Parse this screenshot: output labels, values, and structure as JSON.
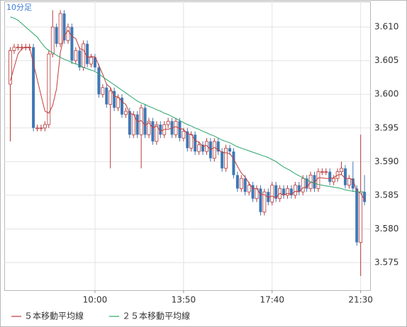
{
  "chart_data": {
    "type": "candlestick",
    "title": "10分足",
    "categories": [
      null,
      null,
      null,
      null,
      null,
      null,
      null,
      null,
      null,
      null,
      null,
      null,
      null,
      null,
      null,
      null,
      null,
      null,
      null,
      null,
      null,
      null,
      "10:00",
      null,
      null,
      null,
      null,
      null,
      null,
      null,
      null,
      null,
      null,
      null,
      null,
      null,
      null,
      null,
      null,
      null,
      null,
      null,
      null,
      null,
      null,
      "13:50",
      null,
      null,
      null,
      null,
      null,
      null,
      null,
      null,
      null,
      null,
      null,
      null,
      null,
      null,
      null,
      null,
      null,
      null,
      null,
      null,
      null,
      null,
      "17:40",
      null,
      null,
      null,
      null,
      null,
      null,
      null,
      null,
      null,
      null,
      null,
      null,
      null,
      null,
      null,
      null,
      null,
      null,
      null,
      null,
      null,
      null,
      "21:30",
      null
    ],
    "open": [
      3.6015,
      3.6065,
      3.607,
      3.607,
      3.607,
      3.607,
      3.607,
      3.595,
      3.595,
      3.595,
      3.5955,
      3.606,
      3.61,
      3.6075,
      3.612,
      3.608,
      3.61,
      3.605,
      3.6065,
      3.604,
      3.6075,
      3.6045,
      3.6055,
      3.604,
      3.6,
      3.601,
      3.5985,
      3.6005,
      3.598,
      3.5995,
      3.597,
      3.5975,
      3.594,
      3.597,
      3.594,
      3.598,
      3.594,
      3.596,
      3.593,
      3.5955,
      3.594,
      3.5955,
      3.596,
      3.594,
      3.596,
      3.5935,
      3.5945,
      3.592,
      3.594,
      3.5915,
      3.5925,
      3.5915,
      3.593,
      3.5905,
      3.593,
      3.5915,
      3.589,
      3.592,
      3.5915,
      3.588,
      3.586,
      3.5875,
      3.5855,
      3.5865,
      3.5845,
      3.586,
      3.5825,
      3.5855,
      3.584,
      3.5865,
      3.5845,
      3.586,
      3.585,
      3.586,
      3.585,
      3.5865,
      3.5855,
      3.5875,
      3.586,
      3.588,
      3.586,
      3.5885,
      3.5885,
      3.5885,
      3.587,
      3.5875,
      3.5885,
      3.589,
      3.5865,
      3.5875,
      3.586,
      3.578,
      3.5855
    ],
    "high": [
      3.607,
      3.6075,
      3.6075,
      3.6075,
      3.6075,
      3.6075,
      3.6075,
      3.5955,
      3.5955,
      3.596,
      3.6065,
      3.6125,
      3.6105,
      3.6125,
      3.6125,
      3.6105,
      3.6105,
      3.607,
      3.607,
      3.608,
      3.608,
      3.606,
      3.606,
      3.6045,
      3.6015,
      3.6015,
      3.601,
      3.601,
      3.6,
      3.6,
      3.598,
      3.598,
      3.5975,
      3.5975,
      3.5985,
      3.5985,
      3.5965,
      3.5965,
      3.596,
      3.596,
      3.596,
      3.5965,
      3.5965,
      3.5965,
      3.5965,
      3.595,
      3.595,
      3.5945,
      3.5945,
      3.593,
      3.593,
      3.5935,
      3.5935,
      3.5935,
      3.5935,
      3.592,
      3.5925,
      3.5925,
      3.592,
      3.5885,
      3.588,
      3.588,
      3.587,
      3.587,
      3.5865,
      3.5865,
      3.586,
      3.586,
      3.587,
      3.587,
      3.5865,
      3.5865,
      3.5865,
      3.5865,
      3.587,
      3.587,
      3.588,
      3.588,
      3.5885,
      3.5885,
      3.589,
      3.589,
      3.589,
      3.589,
      3.588,
      3.589,
      3.59,
      3.5895,
      3.588,
      3.59,
      3.5865,
      3.594,
      3.588
    ],
    "low": [
      3.593,
      3.606,
      3.6065,
      3.6065,
      3.6065,
      3.6065,
      3.5945,
      3.5945,
      3.5945,
      3.5945,
      3.595,
      3.6055,
      3.607,
      3.607,
      3.6075,
      3.6075,
      3.6045,
      3.6045,
      3.6035,
      3.6035,
      3.604,
      3.604,
      3.6035,
      3.5995,
      3.5995,
      3.598,
      3.589,
      3.5975,
      3.5975,
      3.5965,
      3.5965,
      3.5935,
      3.5935,
      3.5935,
      3.589,
      3.5935,
      3.5935,
      3.5925,
      3.5925,
      3.5935,
      3.5935,
      3.595,
      3.5935,
      3.5935,
      3.593,
      3.593,
      3.5915,
      3.5915,
      3.591,
      3.591,
      3.591,
      3.591,
      3.59,
      3.59,
      3.591,
      3.5885,
      3.5885,
      3.591,
      3.5875,
      3.5855,
      3.5855,
      3.585,
      3.585,
      3.584,
      3.584,
      3.582,
      3.582,
      3.5835,
      3.5835,
      3.584,
      3.584,
      3.5845,
      3.5845,
      3.5845,
      3.5845,
      3.585,
      3.585,
      3.5855,
      3.5855,
      3.5855,
      3.5855,
      3.588,
      3.588,
      3.5865,
      3.5865,
      3.587,
      3.588,
      3.586,
      3.586,
      3.5855,
      3.5775,
      3.573,
      3.5835
    ],
    "close": [
      3.6065,
      3.607,
      3.607,
      3.607,
      3.607,
      3.607,
      3.595,
      3.595,
      3.595,
      3.5955,
      3.606,
      3.61,
      3.6075,
      3.612,
      3.608,
      3.61,
      3.605,
      3.6065,
      3.604,
      3.6075,
      3.6045,
      3.6055,
      3.604,
      3.6,
      3.601,
      3.5985,
      3.6005,
      3.598,
      3.5995,
      3.597,
      3.5975,
      3.594,
      3.597,
      3.594,
      3.598,
      3.594,
      3.596,
      3.593,
      3.5955,
      3.594,
      3.5955,
      3.596,
      3.594,
      3.596,
      3.5935,
      3.5945,
      3.592,
      3.594,
      3.5915,
      3.5925,
      3.5915,
      3.593,
      3.5905,
      3.593,
      3.5915,
      3.589,
      3.592,
      3.5915,
      3.588,
      3.586,
      3.5875,
      3.5855,
      3.5865,
      3.5845,
      3.586,
      3.5825,
      3.5855,
      3.584,
      3.5865,
      3.5845,
      3.586,
      3.585,
      3.586,
      3.585,
      3.5865,
      3.5855,
      3.5875,
      3.586,
      3.588,
      3.586,
      3.5885,
      3.5885,
      3.5885,
      3.587,
      3.5875,
      3.5885,
      3.589,
      3.5865,
      3.5875,
      3.586,
      3.578,
      3.5855,
      3.584
    ],
    "up_color": "#b83a3a",
    "down_color": "#3f78b5",
    "series": [
      {
        "name": "５本移動平均線",
        "color": "#c23b3b",
        "values": [
          3.602,
          3.604,
          3.606,
          3.6068,
          3.607,
          3.607,
          3.6046,
          3.6022,
          3.5998,
          3.5975,
          3.5972,
          3.5983,
          3.6008,
          3.6062,
          3.6087,
          3.6095,
          3.6086,
          3.6083,
          3.6068,
          3.6066,
          3.6055,
          3.6056,
          3.6056,
          3.6043,
          3.603,
          3.6015,
          3.601,
          3.5997,
          3.5996,
          3.5989,
          3.5985,
          3.5972,
          3.597,
          3.5959,
          3.5961,
          3.5954,
          3.5958,
          3.595,
          3.5953,
          3.5945,
          3.5948,
          3.5948,
          3.595,
          3.5952,
          3.5949,
          3.5948,
          3.5941,
          3.5941,
          3.5931,
          3.5929,
          3.5923,
          3.5924,
          3.5918,
          3.5921,
          3.5918,
          3.5914,
          3.5913,
          3.5912,
          3.5904,
          3.5893,
          3.5883,
          3.5877,
          3.5868,
          3.586,
          3.586,
          3.5851,
          3.5851,
          3.5847,
          3.5849,
          3.5846,
          3.5853,
          3.585,
          3.5853,
          3.5851,
          3.5856,
          3.5855,
          3.5861,
          3.5862,
          3.5869,
          3.5869,
          3.5876,
          3.5876,
          3.5875,
          3.5875,
          3.5876,
          3.588,
          3.5881,
          3.5875,
          3.5875,
          3.5873,
          3.5856,
          3.5853,
          3.5843
        ]
      },
      {
        "name": "２５本移動平均線",
        "color": "#2aa36a",
        "values": [
          3.6115,
          3.6113,
          3.611,
          3.6105,
          3.61,
          3.6095,
          3.609,
          3.6085,
          3.6077,
          3.607,
          3.6065,
          3.6062,
          3.6058,
          3.6055,
          3.6052,
          3.605,
          3.6047,
          3.6045,
          3.6043,
          3.604,
          3.6038,
          3.6036,
          3.6034,
          3.603,
          3.6026,
          3.6022,
          3.6018,
          3.6014,
          3.601,
          3.6006,
          3.6002,
          3.5998,
          3.5994,
          3.599,
          3.5987,
          3.5985,
          3.5982,
          3.598,
          3.5977,
          3.5975,
          3.5972,
          3.597,
          3.5967,
          3.5964,
          3.5961,
          3.5958,
          3.5955,
          3.5953,
          3.595,
          3.5948,
          3.5945,
          3.5943,
          3.594,
          3.5938,
          3.5935,
          3.5932,
          3.593,
          3.5928,
          3.5925,
          3.5922,
          3.592,
          3.5918,
          3.5916,
          3.5914,
          3.5912,
          3.591,
          3.5908,
          3.5906,
          3.5903,
          3.59,
          3.5896,
          3.5892,
          3.5889,
          3.5886,
          3.5882,
          3.5879,
          3.5876,
          3.5873,
          3.587,
          3.5868,
          3.5866,
          3.5865,
          3.5864,
          3.5863,
          3.5862,
          3.5861,
          3.586,
          3.5858,
          3.5857,
          3.5856,
          3.5855,
          3.5855,
          3.5855
        ]
      }
    ],
    "ylim": [
      3.5709,
      3.6138
    ],
    "yticks": [
      3.575,
      {
        "value": 3.58,
        "label": "3.580"
      },
      3.585,
      {
        "value": 3.59,
        "label": "3.590"
      },
      3.595,
      {
        "value": 3.6,
        "label": "3.600"
      },
      3.605,
      {
        "value": 3.61,
        "label": "3.610"
      }
    ],
    "grid": true
  }
}
